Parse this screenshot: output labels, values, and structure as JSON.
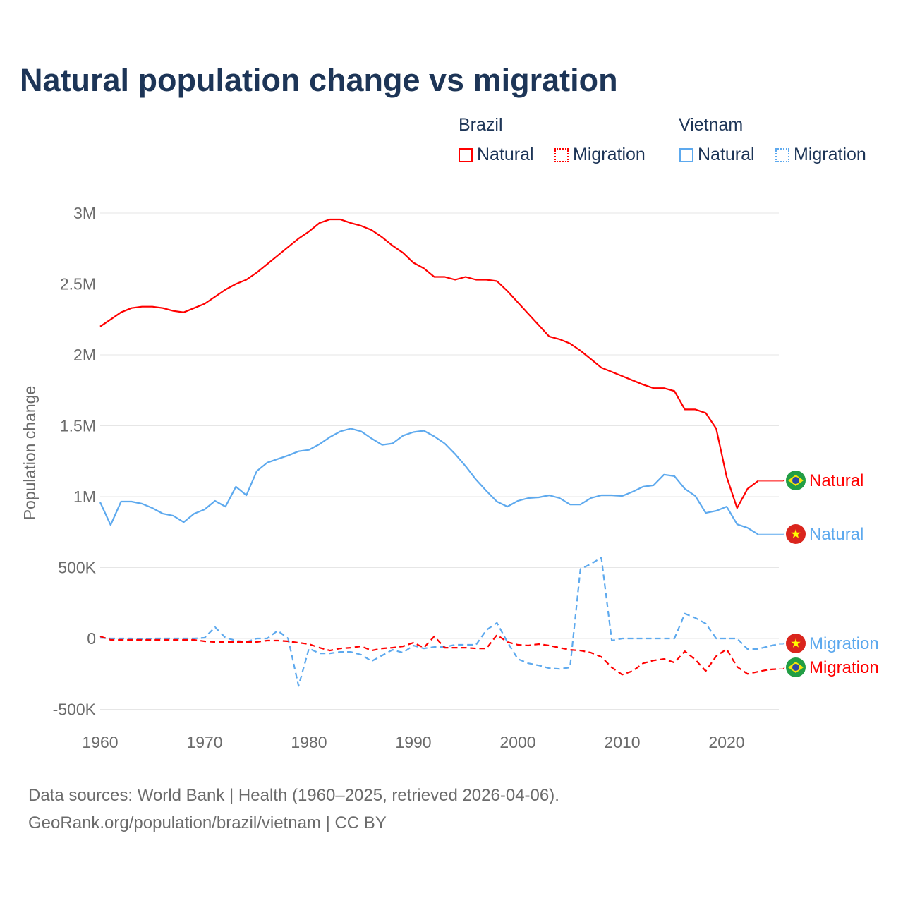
{
  "chart_data": {
    "type": "line",
    "title": "Natural population change vs migration",
    "xlabel": "",
    "ylabel": "Population change",
    "xlim": [
      1960,
      2025
    ],
    "ylim": [
      -500000,
      3000000
    ],
    "grid": true,
    "legend_placement": "top-right",
    "x_ticks": [
      "1960",
      "1970",
      "1980",
      "1990",
      "2000",
      "2010",
      "2020"
    ],
    "y_ticks": [
      {
        "v": 3000000,
        "label": "3M"
      },
      {
        "v": 2500000,
        "label": "2.5M"
      },
      {
        "v": 2000000,
        "label": "2M"
      },
      {
        "v": 1500000,
        "label": "1.5M"
      },
      {
        "v": 1000000,
        "label": "1M"
      },
      {
        "v": 500000,
        "label": "500K"
      },
      {
        "v": 0,
        "label": "0"
      },
      {
        "v": -500000,
        "label": "-500K"
      }
    ],
    "legend": {
      "groups": [
        {
          "country": "Brazil",
          "items": [
            "Natural",
            "Migration"
          ]
        },
        {
          "country": "Vietnam",
          "items": [
            "Natural",
            "Migration"
          ]
        }
      ]
    },
    "series": [
      {
        "name": "Brazil Natural",
        "country": "Brazil",
        "label": "Natural",
        "color": "#ff0000",
        "dashed": false,
        "start": 1960,
        "values": [
          2200000,
          2250000,
          2300000,
          2330000,
          2340000,
          2340000,
          2330000,
          2310000,
          2300000,
          2330000,
          2360000,
          2410000,
          2460000,
          2500000,
          2530000,
          2580000,
          2640000,
          2700000,
          2760000,
          2820000,
          2870000,
          2930000,
          2955000,
          2955000,
          2930000,
          2910000,
          2880000,
          2830000,
          2770000,
          2720000,
          2650000,
          2610000,
          2550000,
          2550000,
          2530000,
          2550000,
          2530000,
          2530000,
          2520000,
          2450000,
          2370000,
          2290000,
          2210000,
          2130000,
          2110000,
          2080000,
          2030000,
          1970000,
          1910000,
          1880000,
          1850000,
          1820000,
          1790000,
          1765000,
          1765000,
          1745000,
          1615000,
          1615000,
          1590000,
          1480000,
          1140000,
          920000,
          1055000,
          1110000
        ]
      },
      {
        "name": "Vietnam Natural",
        "country": "Vietnam",
        "label": "Natural",
        "color": "#5da9ee",
        "dashed": false,
        "start": 1960,
        "values": [
          960000,
          800000,
          965000,
          965000,
          950000,
          920000,
          880000,
          865000,
          820000,
          880000,
          910000,
          970000,
          930000,
          1070000,
          1010000,
          1180000,
          1240000,
          1265000,
          1290000,
          1320000,
          1330000,
          1370000,
          1420000,
          1460000,
          1480000,
          1460000,
          1410000,
          1365000,
          1375000,
          1430000,
          1455000,
          1465000,
          1425000,
          1375000,
          1300000,
          1215000,
          1120000,
          1040000,
          965000,
          930000,
          970000,
          990000,
          995000,
          1010000,
          990000,
          945000,
          945000,
          990000,
          1010000,
          1010000,
          1005000,
          1035000,
          1070000,
          1080000,
          1155000,
          1145000,
          1055000,
          1005000,
          885000,
          900000,
          930000,
          805000,
          780000,
          735000
        ]
      },
      {
        "name": "Vietnam Migration",
        "country": "Vietnam",
        "label": "Migration",
        "color": "#5da9ee",
        "dashed": true,
        "start": 1960,
        "values": [
          5000,
          0,
          0,
          0,
          -5000,
          0,
          0,
          0,
          0,
          0,
          5000,
          80000,
          5000,
          -15000,
          -25000,
          0,
          0,
          55000,
          0,
          -335000,
          -70000,
          -105000,
          -105000,
          -95000,
          -95000,
          -115000,
          -160000,
          -120000,
          -80000,
          -100000,
          -50000,
          -70000,
          -60000,
          -60000,
          -45000,
          -45000,
          -45000,
          60000,
          110000,
          -25000,
          -145000,
          -175000,
          -190000,
          -210000,
          -215000,
          -205000,
          490000,
          525000,
          570000,
          -15000,
          0,
          0,
          0,
          0,
          0,
          0,
          175000,
          145000,
          105000,
          0,
          0,
          0,
          -75000,
          -75000,
          -55000,
          -40000
        ]
      },
      {
        "name": "Brazil Migration",
        "country": "Brazil",
        "label": "Migration",
        "color": "#ff0000",
        "dashed": true,
        "start": 1960,
        "values": [
          15000,
          -10000,
          -10000,
          -10000,
          -10000,
          -10000,
          -10000,
          -10000,
          -10000,
          -10000,
          -20000,
          -25000,
          -25000,
          -25000,
          -25000,
          -25000,
          -15000,
          -15000,
          -20000,
          -30000,
          -40000,
          -65000,
          -85000,
          -70000,
          -65000,
          -55000,
          -85000,
          -70000,
          -65000,
          -55000,
          -30000,
          -65000,
          15000,
          -65000,
          -65000,
          -65000,
          -70000,
          -70000,
          25000,
          -25000,
          -45000,
          -50000,
          -40000,
          -50000,
          -65000,
          -80000,
          -85000,
          -100000,
          -130000,
          -205000,
          -255000,
          -230000,
          -175000,
          -155000,
          -145000,
          -170000,
          -90000,
          -150000,
          -230000,
          -125000,
          -75000,
          -200000,
          -250000,
          -235000,
          -220000,
          -215000
        ]
      }
    ]
  },
  "footer": {
    "line1": "Data sources: World Bank | Health (1960–2025, retrieved 2026-04-06).",
    "line2": "GeoRank.org/population/brazil/vietnam | CC BY"
  }
}
